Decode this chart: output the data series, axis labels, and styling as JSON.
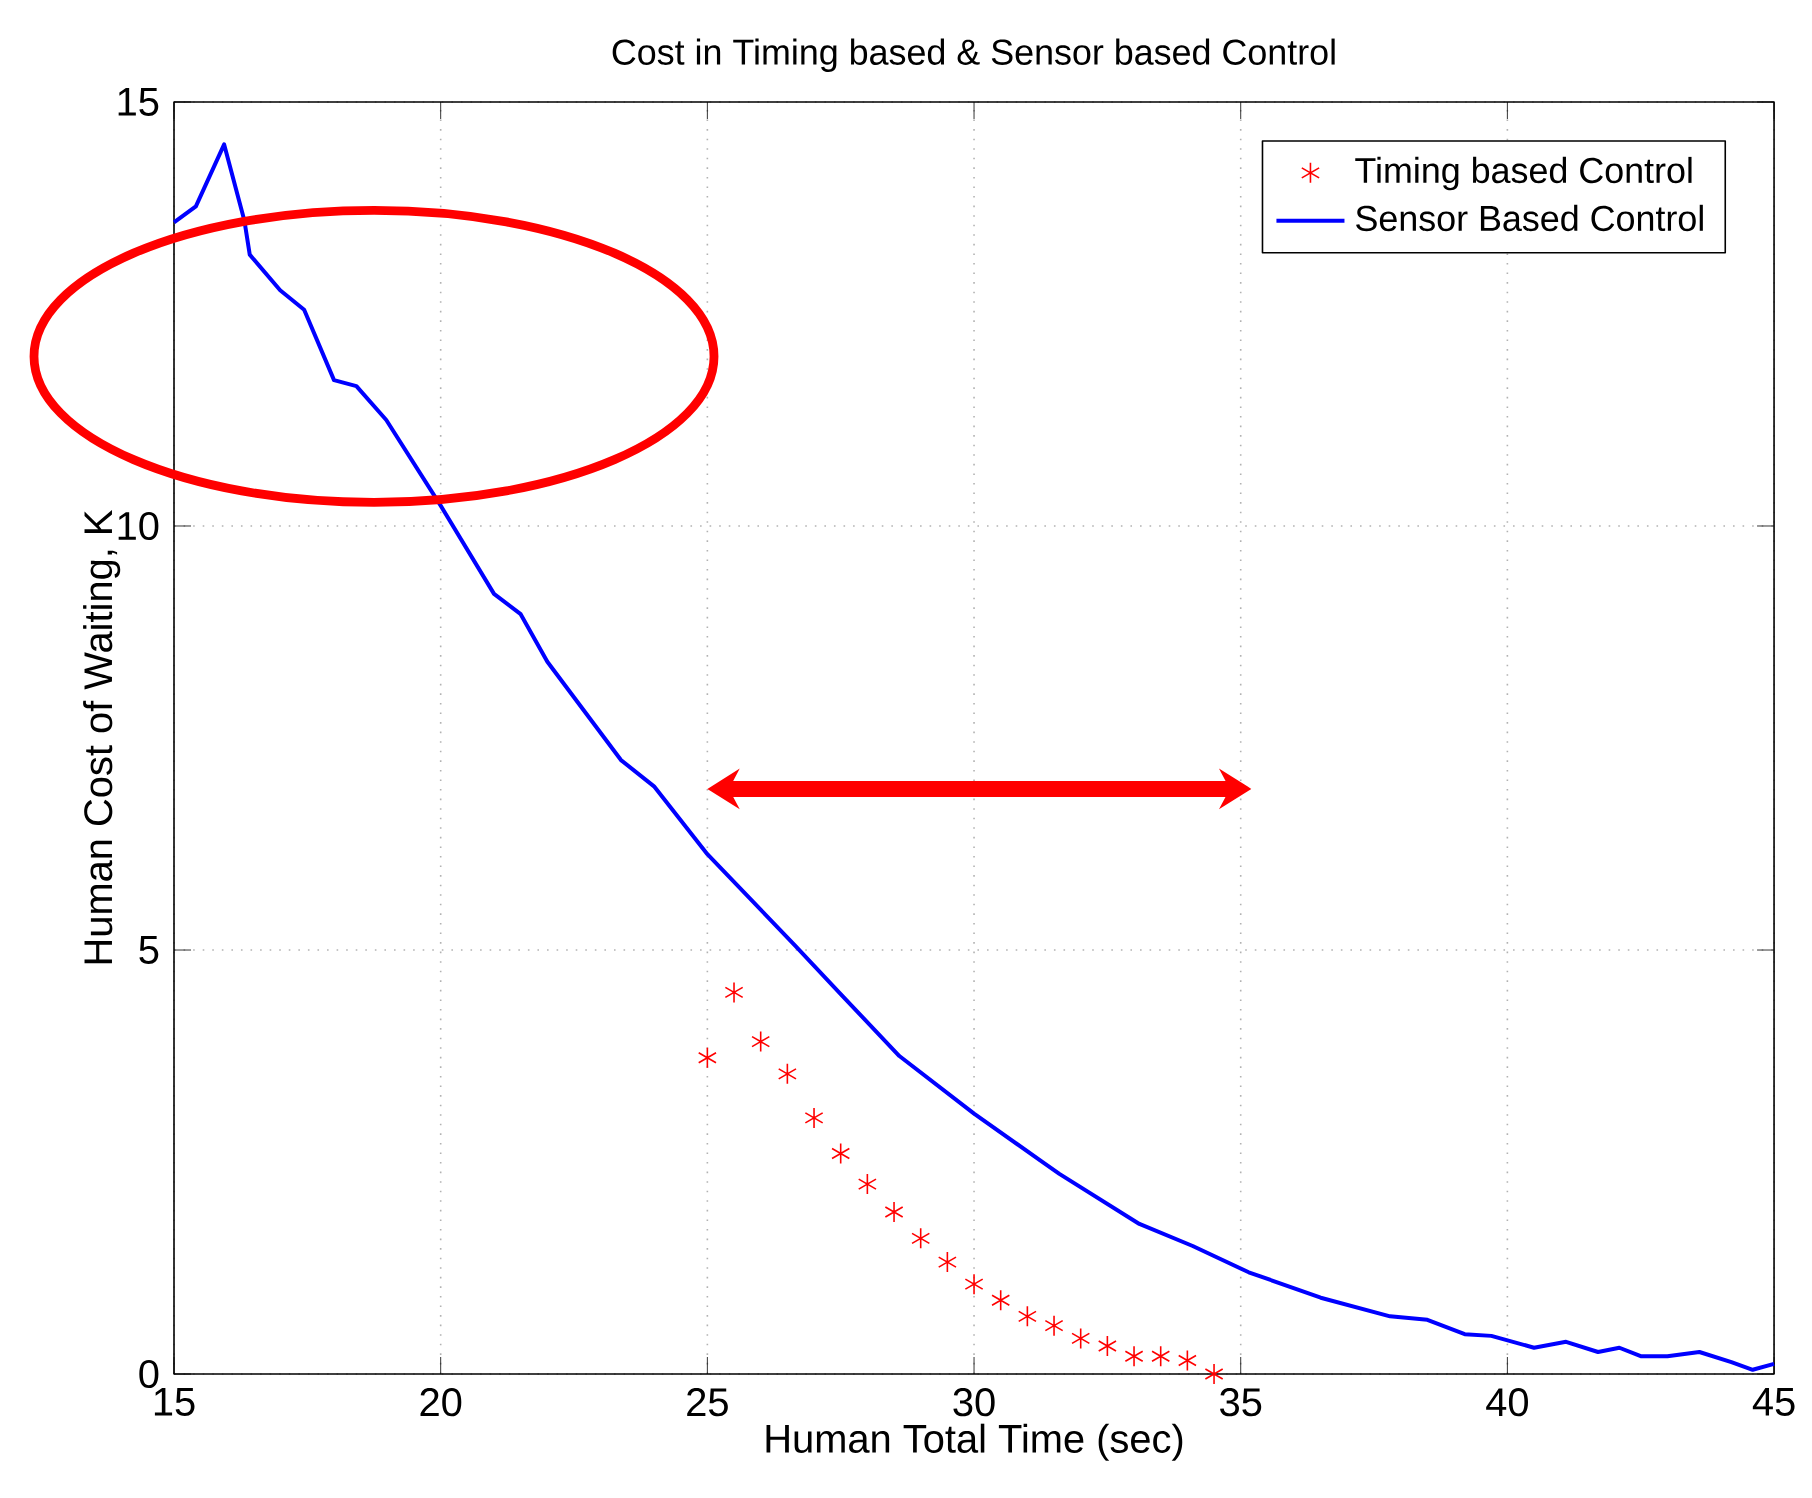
{
  "chart_data": {
    "type": "line",
    "title": "Cost in Timing based & Sensor based Control",
    "xlabel": "Human Total Time (sec)",
    "ylabel": "Human Cost of Waiting, K",
    "xlim": [
      15,
      45
    ],
    "xticks": [
      15,
      20,
      25,
      30,
      35,
      40,
      45
    ],
    "ylim": [
      0,
      15
    ],
    "yticks": [
      0,
      5,
      10,
      15
    ],
    "grid": true,
    "legend": "top right",
    "series": [
      {
        "name": "Timing based Control",
        "type": "scatter",
        "marker": "cross",
        "color": "#ff0000",
        "x": [
          25.0,
          25.5,
          26.0,
          26.5,
          27.0,
          27.5,
          28.0,
          28.5,
          29.0,
          29.5,
          30.0,
          30.5,
          31.0,
          31.5,
          32.0,
          32.5,
          33.0,
          33.5,
          34.0,
          34.5
        ],
        "values": [
          3.73,
          4.5,
          3.92,
          3.54,
          3.02,
          2.6,
          2.24,
          1.91,
          1.6,
          1.32,
          1.06,
          0.87,
          0.68,
          0.57,
          0.42,
          0.33,
          0.21,
          0.21,
          0.16,
          0.0
        ]
      },
      {
        "name": "Sensor Based Control",
        "type": "line",
        "line_style": "solid",
        "color": "#0000ff",
        "x": [
          15.0,
          15.41,
          15.94,
          16.32,
          16.42,
          16.99,
          17.44,
          18.0,
          18.42,
          18.98,
          20.0,
          21.0,
          21.5,
          22.0,
          23.38,
          24.0,
          25.0,
          26.65,
          27.5,
          28.6,
          30.0,
          31.24,
          31.6,
          33.1,
          34.1,
          35.15,
          36.5,
          37.8,
          38.5,
          39.2,
          39.7,
          40.5,
          41.1,
          41.7,
          42.1,
          42.5,
          43.0,
          43.6,
          44.2,
          44.6,
          45.0
        ],
        "values": [
          13.58,
          13.77,
          14.5,
          13.6,
          13.2,
          12.78,
          12.55,
          11.72,
          11.65,
          11.25,
          10.24,
          9.2,
          8.96,
          8.4,
          7.24,
          6.93,
          6.13,
          5.05,
          4.48,
          3.75,
          3.07,
          2.52,
          2.36,
          1.77,
          1.51,
          1.2,
          0.9,
          0.68,
          0.64,
          0.47,
          0.45,
          0.31,
          0.38,
          0.26,
          0.31,
          0.21,
          0.21,
          0.26,
          0.14,
          0.05,
          0.12
        ]
      }
    ]
  }
}
